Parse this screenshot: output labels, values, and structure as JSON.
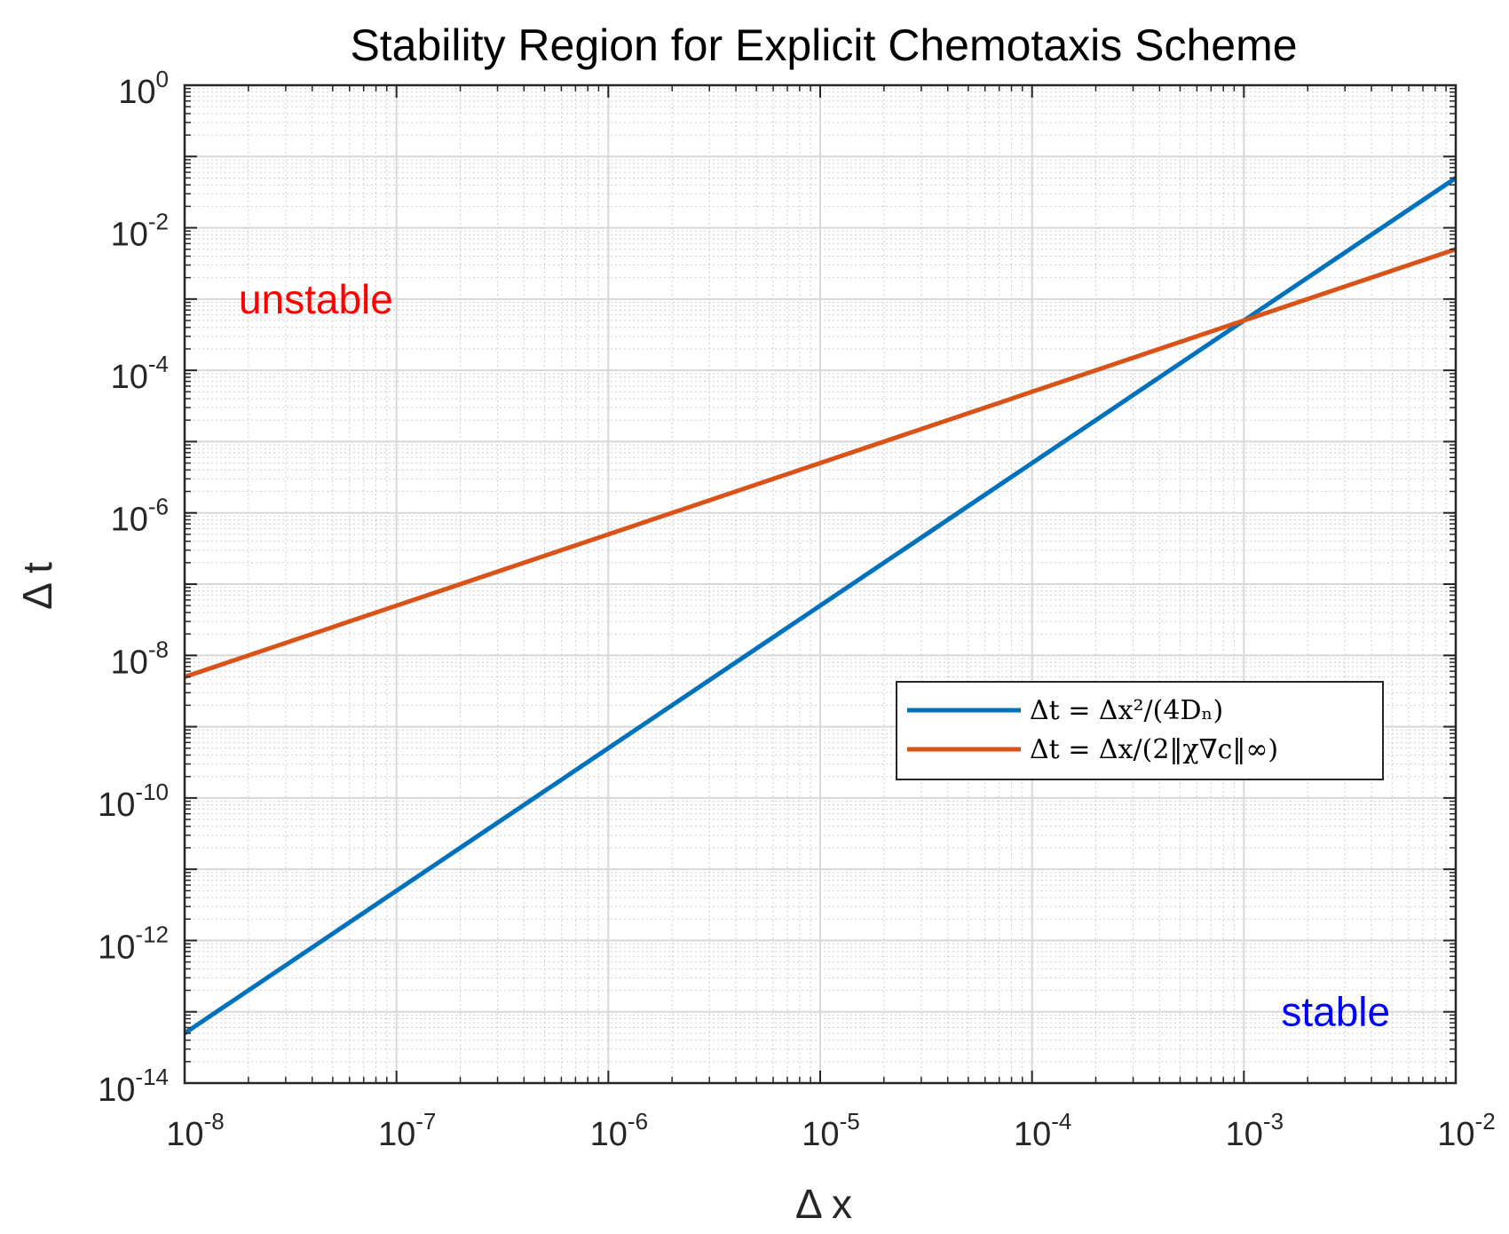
{
  "chart_data": {
    "type": "line",
    "title": "Stability Region for Explicit Chemotaxis Scheme",
    "xlabel": "Δ x",
    "ylabel": "Δ t",
    "xscale": "log",
    "yscale": "log",
    "xlim": [
      1e-08,
      0.01
    ],
    "ylim": [
      1e-14,
      1
    ],
    "grid": true,
    "minor_grid": true,
    "x_ticks": [
      {
        "base": "10",
        "exp": "-8"
      },
      {
        "base": "10",
        "exp": "-7"
      },
      {
        "base": "10",
        "exp": "-6"
      },
      {
        "base": "10",
        "exp": "-5"
      },
      {
        "base": "10",
        "exp": "-4"
      },
      {
        "base": "10",
        "exp": "-3"
      },
      {
        "base": "10",
        "exp": "-2"
      }
    ],
    "y_ticks": [
      {
        "base": "10",
        "exp": "0"
      },
      {
        "base": "10",
        "exp": "-2"
      },
      {
        "base": "10",
        "exp": "-4"
      },
      {
        "base": "10",
        "exp": "-6"
      },
      {
        "base": "10",
        "exp": "-8"
      },
      {
        "base": "10",
        "exp": "-10"
      },
      {
        "base": "10",
        "exp": "-12"
      },
      {
        "base": "10",
        "exp": "-14"
      }
    ],
    "series": [
      {
        "name": "Δt = Δx²/(4Dₙ)",
        "color": "#0072BD",
        "x": [
          1e-08,
          0.01
        ],
        "y": [
          5e-14,
          0.05
        ]
      },
      {
        "name": "Δt = Δx/(2‖χ∇c‖∞)",
        "color": "#D95319",
        "x": [
          1e-08,
          0.01
        ],
        "y": [
          5e-09,
          0.005
        ]
      }
    ],
    "legend_position": "center-right",
    "annotations": [
      {
        "text": "unstable",
        "color": "#FF0000",
        "x": 1.8e-08,
        "y": 0.001
      },
      {
        "text": "stable",
        "color": "#0000FF",
        "x": 0.0015,
        "y": 1e-13
      }
    ]
  }
}
